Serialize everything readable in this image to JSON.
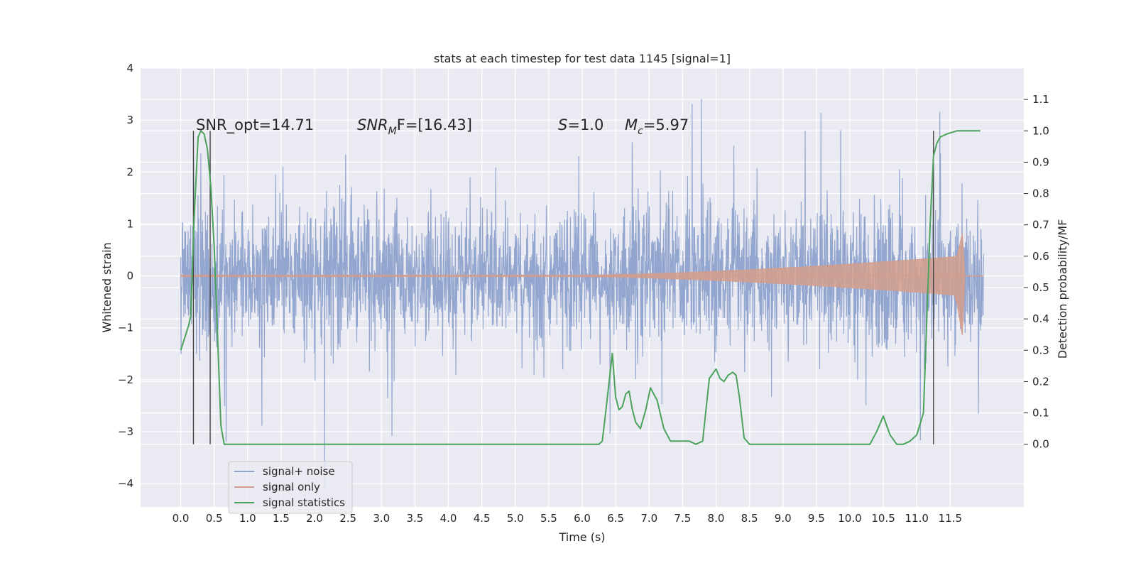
{
  "chart_data": {
    "type": "line",
    "title": "stats at each timestep for test data 1145 [signal=1]",
    "xlabel": "Time (s)",
    "ylabel": "Whitened strain",
    "ylabel_right": "Detection probability/MF",
    "xlim": [
      -0.6,
      12.6
    ],
    "ylim": [
      -4.45,
      4.0
    ],
    "ylim_right": [
      -0.2,
      1.2
    ],
    "x_ticks": [
      "0.0",
      "0.5",
      "1.0",
      "1.5",
      "2.0",
      "2.5",
      "3.0",
      "3.5",
      "4.0",
      "4.5",
      "5.0",
      "5.5",
      "6.0",
      "6.5",
      "7.0",
      "7.5",
      "8.0",
      "8.5",
      "9.0",
      "9.5",
      "10.0",
      "10.5",
      "11.0",
      "11.5"
    ],
    "y_ticks": [
      "−4",
      "−3",
      "−2",
      "−1",
      "0",
      "1",
      "2",
      "3",
      "4"
    ],
    "y_ticks_right": [
      "0.0",
      "0.1",
      "0.2",
      "0.3",
      "0.4",
      "0.5",
      "0.6",
      "0.7",
      "0.8",
      "0.9",
      "1.0",
      "1.1"
    ],
    "grid": true,
    "legend_position": "lower-left",
    "annotations": [
      {
        "text": "SNR_opt=14.71"
      },
      {
        "main": "SNR",
        "sub": "M",
        "rest": "F=[16.43]"
      },
      {
        "main": "S",
        "sub": "",
        "rest": "=1.0"
      },
      {
        "main": "M",
        "sub": "c",
        "rest": "=5.97"
      }
    ],
    "vertical_lines_x": [
      0.19,
      0.44,
      11.25
    ],
    "series": [
      {
        "name": "signal+ noise",
        "color": "#8ea2cc",
        "range": [
          0,
          12.0
        ],
        "sigma": 0.62
      },
      {
        "name": "signal only",
        "color": "#d29d8c"
      },
      {
        "name": "signal statistics",
        "color": "#4aa25b",
        "x": [
          0.0,
          0.12,
          0.15,
          0.2,
          0.26,
          0.3,
          0.35,
          0.4,
          0.45,
          0.5,
          0.55,
          0.6,
          0.65,
          0.7,
          0.8,
          1.0,
          1.3,
          1.5,
          1.7,
          1.9,
          2.0,
          2.2,
          2.5,
          2.8,
          3.2,
          3.6,
          3.8,
          4.0,
          4.5,
          5.0,
          5.5,
          6.0,
          6.25,
          6.3,
          6.35,
          6.45,
          6.5,
          6.55,
          6.6,
          6.65,
          6.7,
          6.75,
          6.8,
          6.87,
          6.95,
          7.02,
          7.12,
          7.22,
          7.32,
          7.4,
          7.5,
          7.6,
          7.7,
          7.8,
          7.9,
          8.0,
          8.06,
          8.12,
          8.18,
          8.25,
          8.3,
          8.35,
          8.42,
          8.5,
          8.6,
          9.0,
          9.5,
          10.0,
          10.2,
          10.3,
          10.4,
          10.5,
          10.55,
          10.6,
          10.7,
          10.8,
          10.9,
          11.0,
          11.1,
          11.15,
          11.2,
          11.25,
          11.3,
          11.35,
          11.45,
          11.6,
          11.95
        ],
        "y": [
          0.3,
          0.38,
          0.41,
          0.72,
          0.98,
          1.0,
          0.99,
          0.94,
          0.82,
          0.63,
          0.35,
          0.06,
          0.0,
          0.0,
          0.0,
          0.0,
          0.0,
          0.0,
          0.0,
          0.0,
          0.0,
          0.0,
          0.0,
          0.0,
          0.0,
          0.0,
          0.0,
          0.0,
          0.0,
          0.0,
          0.0,
          0.0,
          0.0,
          0.01,
          0.1,
          0.29,
          0.15,
          0.11,
          0.12,
          0.16,
          0.17,
          0.11,
          0.07,
          0.05,
          0.11,
          0.18,
          0.14,
          0.05,
          0.01,
          0.01,
          0.01,
          0.01,
          0.0,
          0.01,
          0.21,
          0.24,
          0.21,
          0.2,
          0.22,
          0.23,
          0.22,
          0.15,
          0.02,
          0.0,
          0.0,
          0.0,
          0.0,
          0.0,
          0.0,
          0.0,
          0.04,
          0.09,
          0.06,
          0.03,
          0.0,
          0.0,
          0.01,
          0.03,
          0.1,
          0.4,
          0.7,
          0.92,
          0.96,
          0.98,
          0.99,
          1.0,
          1.0
        ]
      }
    ]
  }
}
